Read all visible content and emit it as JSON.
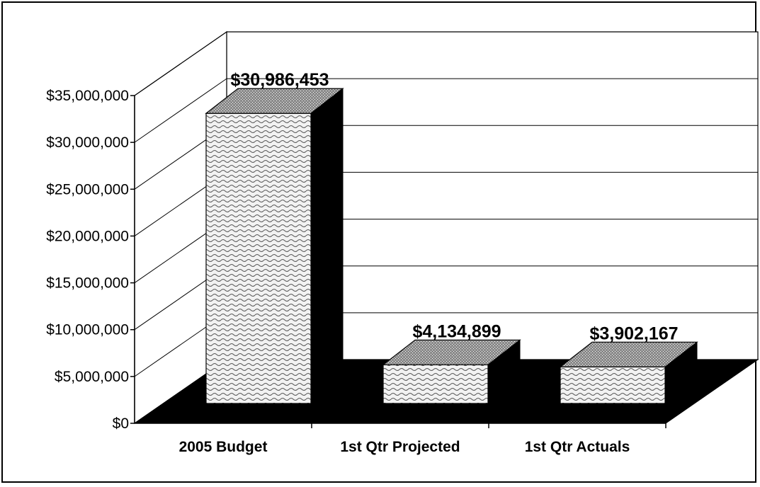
{
  "chart_data": {
    "type": "bar",
    "categories": [
      "2005 Budget",
      "1st Qtr Projected",
      "1st Qtr Actuals"
    ],
    "values": [
      30986453,
      4134899,
      3902167
    ],
    "data_labels": [
      "$30,986,453",
      "$4,134,899",
      "$3,902,167"
    ],
    "title": "",
    "xlabel": "",
    "ylabel": "",
    "ylim": [
      0,
      35000000
    ],
    "y_ticks": [
      "$0",
      "$5,000,000",
      "$10,000,000",
      "$15,000,000",
      "$20,000,000",
      "$25,000,000",
      "$30,000,000",
      "$35,000,000"
    ],
    "grid": true,
    "legend": "none",
    "three_d": true
  }
}
